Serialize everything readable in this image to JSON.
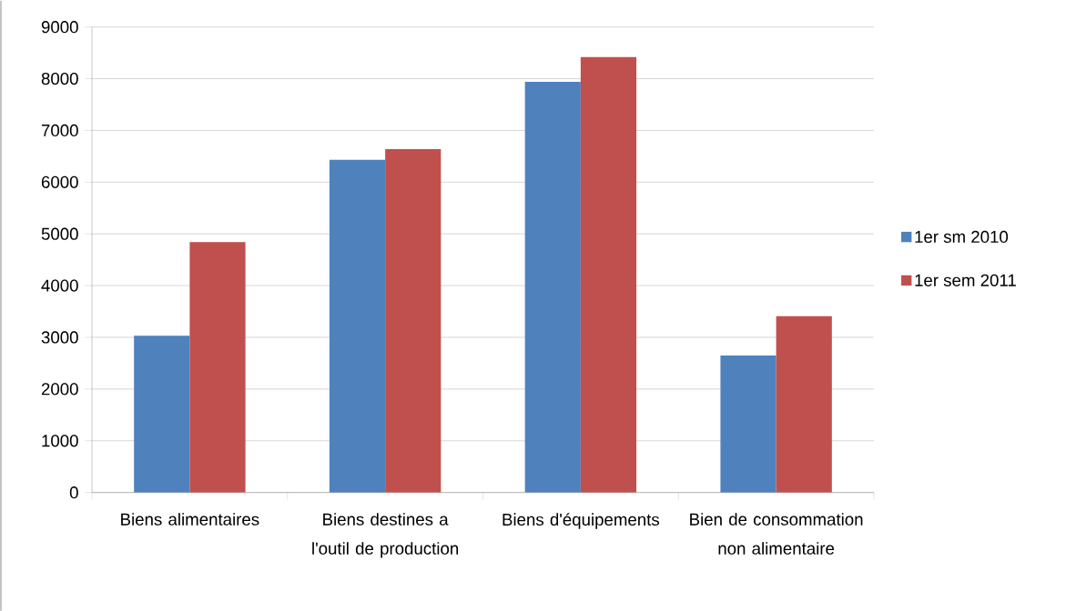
{
  "chart_data": {
    "type": "bar",
    "categories": [
      "Biens alimentaires",
      "Biens destines a l'outil de production",
      "Biens d'équipements",
      "Bien de consommation non alimentaire"
    ],
    "series": [
      {
        "name": "1er sm 2010",
        "color": "#4f81bd",
        "values": [
          3030,
          6430,
          7940,
          2650
        ]
      },
      {
        "name": "1er sem 2011",
        "color": "#c0504d",
        "values": [
          4840,
          6640,
          8420,
          3410
        ]
      }
    ],
    "ylim": [
      0,
      9000
    ],
    "yticks": [
      0,
      1000,
      2000,
      3000,
      4000,
      5000,
      6000,
      7000,
      8000,
      9000
    ],
    "grid": "y",
    "legend": "right"
  }
}
